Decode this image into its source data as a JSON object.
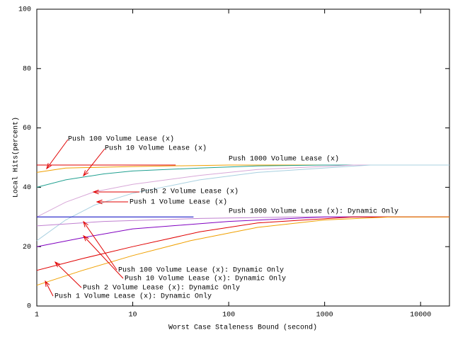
{
  "chart_data": {
    "type": "line",
    "xlabel": "Worst Case Staleness Bound (second)",
    "ylabel": "Local Hits(percent)",
    "log_x": true,
    "xlim": [
      1,
      20000
    ],
    "ylim": [
      0,
      100
    ],
    "xticks": [
      1,
      10,
      100,
      1000,
      10000
    ],
    "yticks": [
      0,
      20,
      40,
      60,
      80,
      100
    ],
    "series": [
      {
        "name": "Push 1000 Volume Lease (x)",
        "color": "#e00000",
        "x": [
          1,
          28
        ],
        "values": [
          47.5,
          47.5
        ]
      },
      {
        "name": "Push 100 Volume Lease (x)",
        "color": "#f0a000",
        "x": [
          1,
          2,
          10,
          100,
          20000
        ],
        "values": [
          45,
          46.5,
          47,
          47.5,
          47.5
        ]
      },
      {
        "name": "Push 10 Volume Lease (x)",
        "color": "#20a090",
        "x": [
          1,
          2,
          5,
          10,
          50,
          200,
          1000,
          20000
        ],
        "values": [
          40,
          42.5,
          44.5,
          45.5,
          46.5,
          47.2,
          47.5,
          47.5
        ]
      },
      {
        "name": "Push 2 Volume Lease (x)",
        "color": "#d8a8d8",
        "x": [
          1,
          2,
          4,
          10,
          50,
          200,
          2000,
          20000
        ],
        "values": [
          30,
          35,
          38.5,
          41,
          44,
          46,
          47.5,
          47.5
        ]
      },
      {
        "name": "Push 1 Volume Lease (x)",
        "color": "#a8d0e0",
        "x": [
          1,
          2,
          4,
          10,
          50,
          200,
          3000,
          20000
        ],
        "values": [
          22,
          29,
          34,
          38,
          42.5,
          45,
          47.5,
          47.5
        ]
      },
      {
        "name": "Push 1000 Volume Lease (x): Dynamic Only",
        "color": "#0000c0",
        "x": [
          1,
          43
        ],
        "values": [
          30,
          30
        ]
      },
      {
        "name": "Push 100 Volume Lease (x): Dynamic Only",
        "color": "#c080d0",
        "x": [
          1,
          5,
          50,
          500,
          20000
        ],
        "values": [
          27,
          28.5,
          29.5,
          30,
          30
        ]
      },
      {
        "name": "Push 10 Volume Lease (x): Dynamic Only",
        "color": "#8000c0",
        "x": [
          1,
          3,
          10,
          100,
          1000,
          20000
        ],
        "values": [
          20,
          23,
          26,
          28.5,
          30,
          30
        ]
      },
      {
        "name": "Push 2 Volume Lease (x): Dynamic Only",
        "color": "#e00000",
        "x": [
          1,
          3,
          10,
          50,
          200,
          2000,
          20000
        ],
        "values": [
          12,
          16,
          20,
          25,
          28,
          30,
          30
        ]
      },
      {
        "name": "Push 1 Volume Lease (x): Dynamic Only",
        "color": "#f0a000",
        "x": [
          1,
          3,
          10,
          40,
          200,
          1000,
          5000,
          20000
        ],
        "values": [
          7,
          12,
          17,
          22,
          26.5,
          29,
          30,
          30
        ]
      }
    ],
    "annotations": [
      "Push 100 Volume Lease (x)",
      "Push 10 Volume Lease (x)",
      "Push 1000 Volume Lease (x)",
      "Push 2 Volume Lease (x)",
      "Push 1 Volume Lease (x)",
      "Push 1000 Volume Lease (x): Dynamic Only",
      "Push 100 Volume Lease (x): Dynamic Only",
      "Push 10 Volume Lease (x): Dynamic Only",
      "Push 2 Volume Lease (x): Dynamic Only",
      "Push 1 Volume Lease (x): Dynamic Only"
    ]
  }
}
